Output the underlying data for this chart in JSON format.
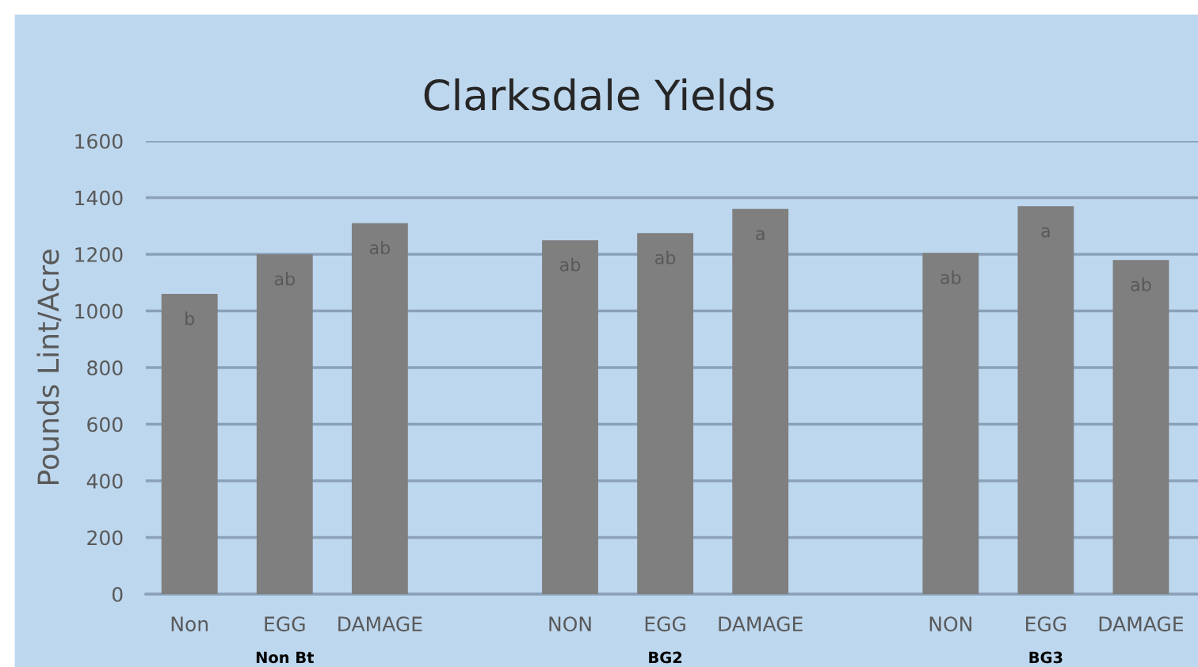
{
  "chart_data": {
    "type": "bar",
    "title": "Clarksdale Yields",
    "ylabel": "Pounds Lint/Acre",
    "categories": [
      "Non",
      "EGG",
      "DAMAGE",
      null,
      "NON",
      "EGG",
      "DAMAGE",
      null,
      "NON",
      "EGG",
      "DAMAGE"
    ],
    "values": [
      1060,
      1200,
      1310,
      null,
      1250,
      1275,
      1360,
      null,
      1205,
      1370,
      1180
    ],
    "value_labels": [
      "b",
      "ab",
      "ab",
      null,
      "ab",
      "ab",
      "a",
      null,
      "ab",
      "a",
      "ab"
    ],
    "annotations": [
      "Non Bt",
      "BG2",
      "BG3"
    ],
    "color": "#7f7f7f",
    "ylim": [
      0,
      1600
    ],
    "yticks": [
      0,
      200,
      400,
      600,
      800,
      1000,
      1200,
      1400,
      1600
    ],
    "grid": "y"
  }
}
